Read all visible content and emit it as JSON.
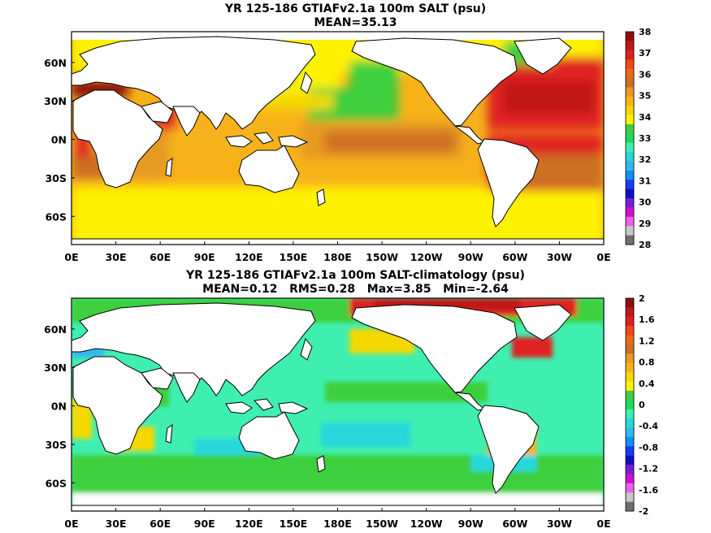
{
  "panels": [
    {
      "title_line1": "YR 125-186 GTIAFv2.1a 100m SALT (psu)",
      "title_line2": "MEAN=35.13",
      "x_ticks": [
        "0E",
        "30E",
        "60E",
        "90E",
        "120E",
        "150E",
        "180E",
        "150W",
        "120W",
        "90W",
        "60W",
        "30W",
        "0E"
      ],
      "y_ticks": [
        "60N",
        "30N",
        "0N",
        "30S",
        "60S"
      ],
      "colorbar_ticks": [
        "38",
        "37",
        "36",
        "35",
        "34",
        "33",
        "32",
        "31",
        "30",
        "29",
        "28"
      ],
      "colorbar_colors": [
        "#8c1010",
        "#c01818",
        "#e02020",
        "#f04818",
        "#ee6a10",
        "#cc7020",
        "#e79a20",
        "#f7b21a",
        "#f5d800",
        "#fff200",
        "#3ecf3e",
        "#1edc5a",
        "#3fefb0",
        "#28d8dc",
        "#30b8f0",
        "#1090f0",
        "#1a3af5",
        "#1010c0",
        "#7820d0",
        "#d010d0",
        "#f060f0",
        "#c8c8c8",
        "#707070"
      ]
    },
    {
      "title_line1": "YR 125-186 GTIAFv2.1a 100m SALT-climatology (psu)",
      "title_line2": "MEAN=0.12   RMS=0.28   Max=3.85   Min=-2.64",
      "x_ticks": [
        "0E",
        "30E",
        "60E",
        "90E",
        "120E",
        "150E",
        "180E",
        "150W",
        "120W",
        "90W",
        "60W",
        "30W",
        "0E"
      ],
      "y_ticks": [
        "60N",
        "30N",
        "0N",
        "30S",
        "60S"
      ],
      "colorbar_ticks": [
        "2",
        "1.6",
        "1.2",
        "0.8",
        "0.4",
        "0",
        "-0.4",
        "-0.8",
        "-1.2",
        "-1.6",
        "-2"
      ],
      "colorbar_colors": [
        "#8c1010",
        "#c01818",
        "#e02020",
        "#f04818",
        "#ee6a10",
        "#cc7020",
        "#e79a20",
        "#f7b21a",
        "#f5d800",
        "#fff200",
        "#3ecf3e",
        "#1edc5a",
        "#3fefb0",
        "#28d8dc",
        "#30b8f0",
        "#1090f0",
        "#1a3af5",
        "#1010c0",
        "#7820d0",
        "#d010d0",
        "#f060f0",
        "#c8c8c8",
        "#707070"
      ]
    }
  ]
}
